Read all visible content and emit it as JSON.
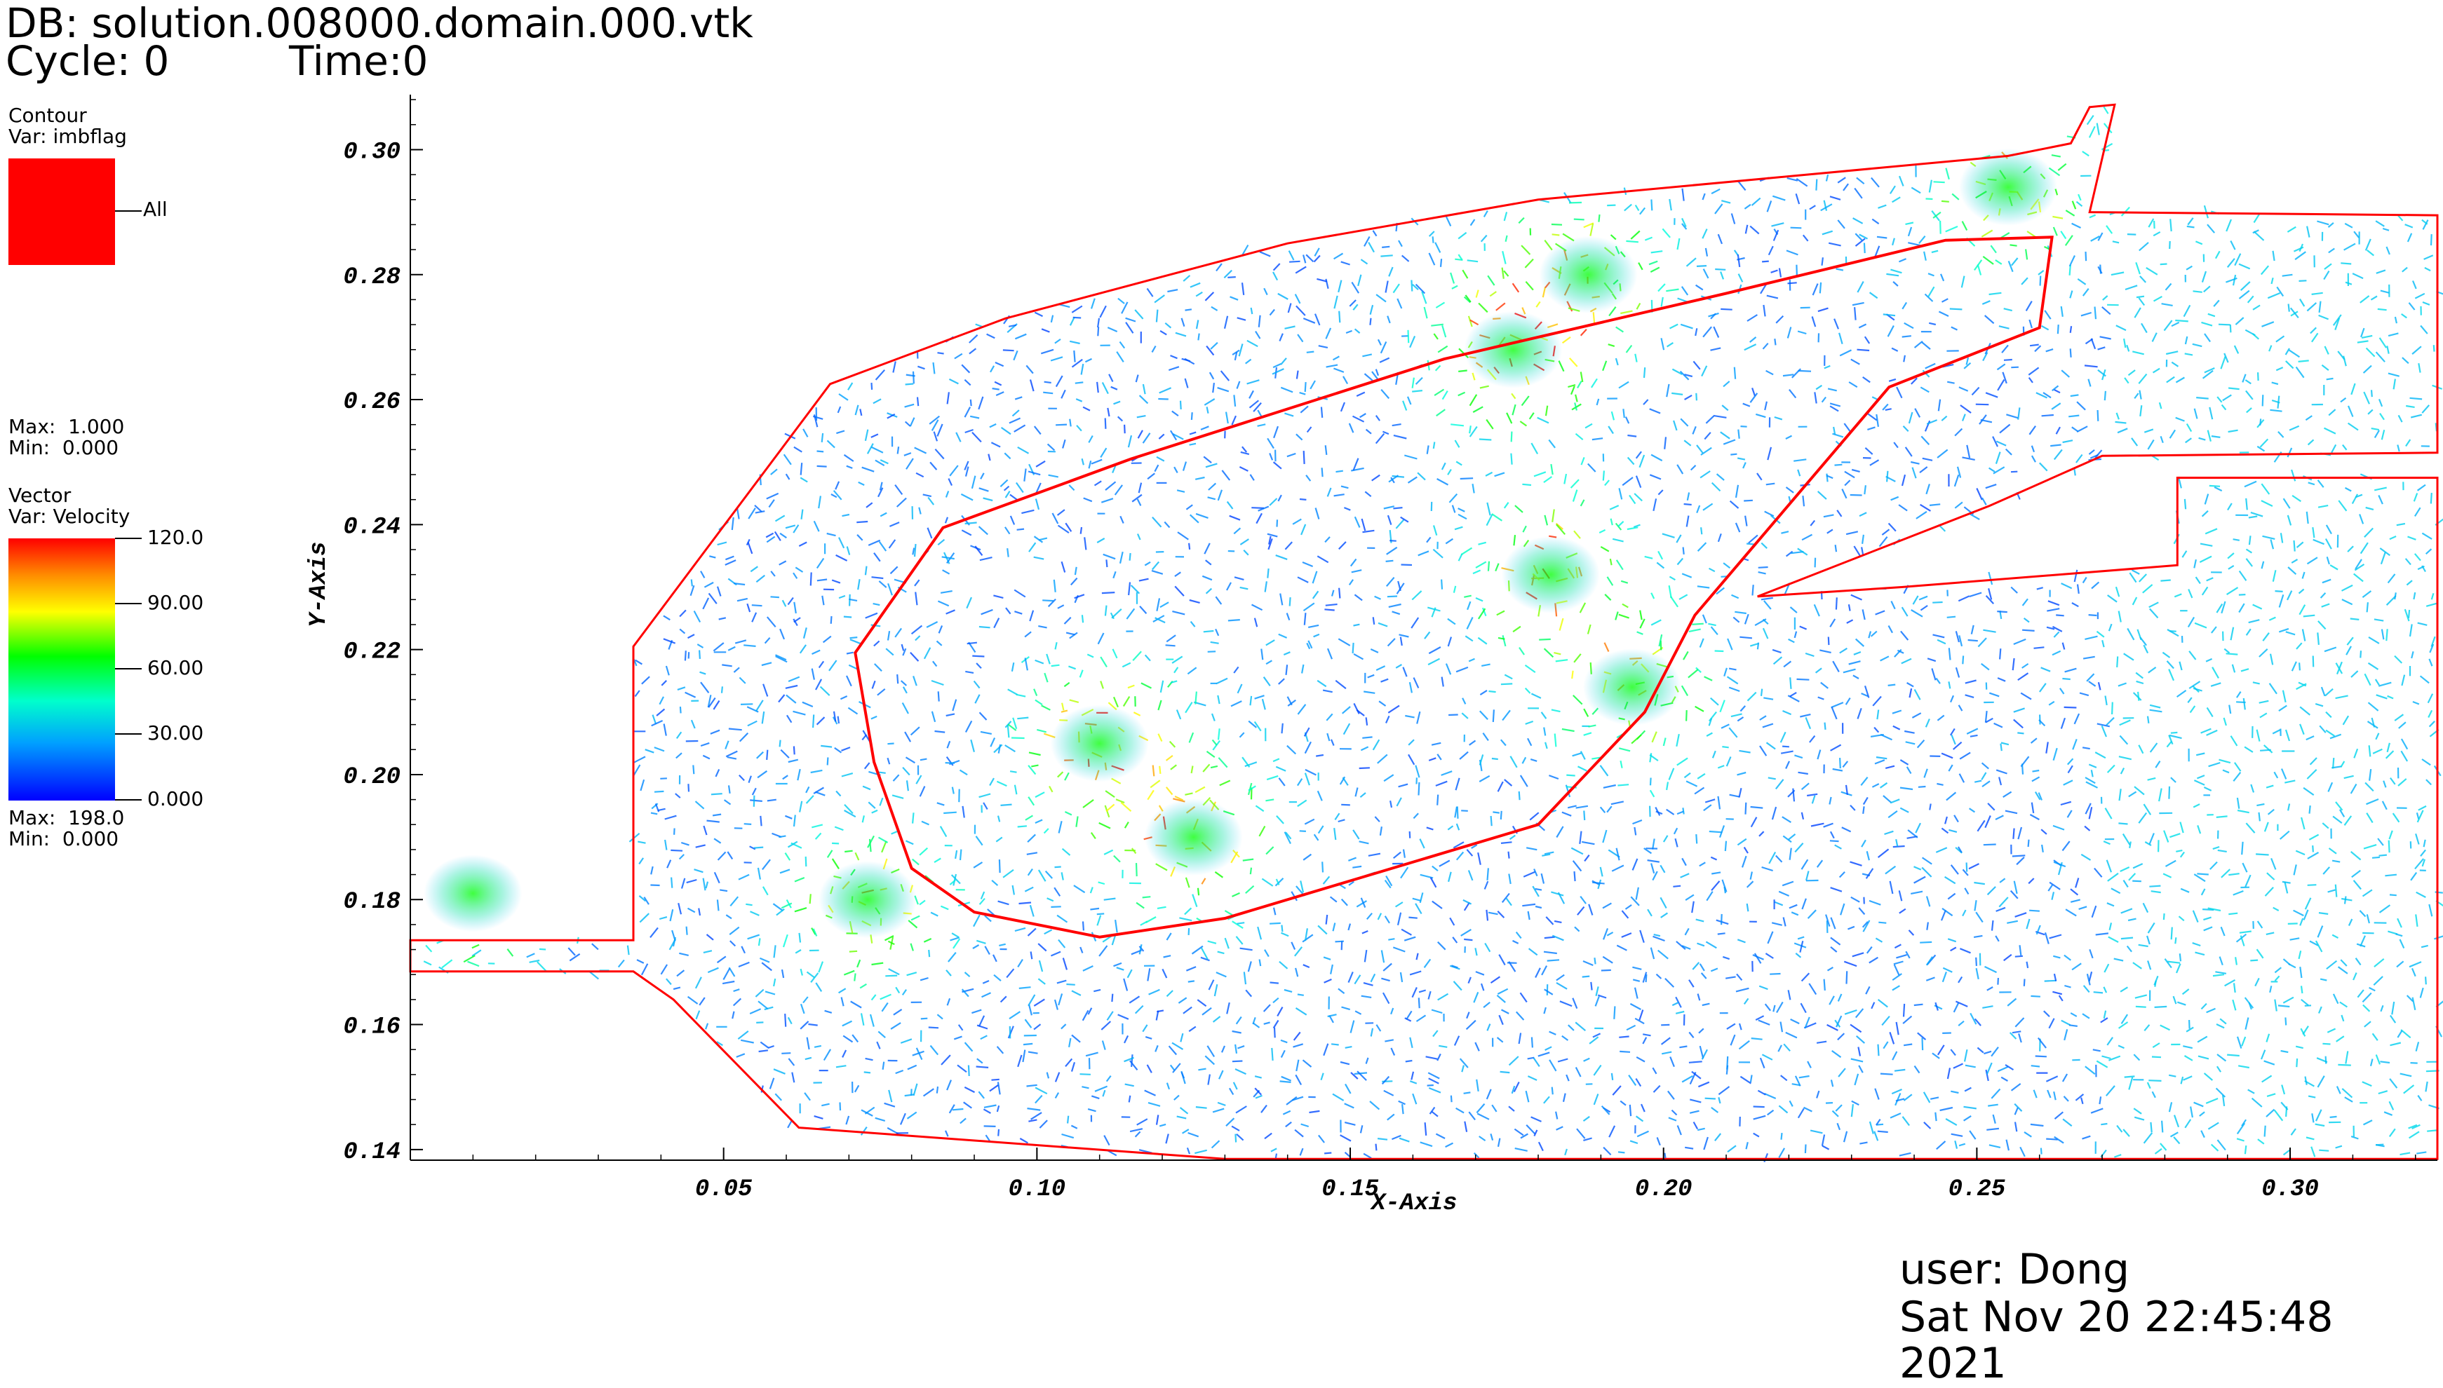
{
  "header": {
    "db_label": "DB: solution.008000.domain.000.vtk",
    "cycle_label": "Cycle: 0",
    "time_label": "Time:0"
  },
  "contour_legend": {
    "title": "Contour",
    "var": "Var: imbflag",
    "entry": "All",
    "color": "#ff0000",
    "max": "Max:  1.000",
    "min": "Min:  0.000"
  },
  "vector_legend": {
    "title": "Vector",
    "var": "Var: Velocity",
    "ticks": [
      "120.0",
      "90.00",
      "60.00",
      "30.00",
      "0.000"
    ],
    "max": "Max:  198.0",
    "min": "Min:  0.000",
    "colormap": [
      "#ff0000",
      "#ffa500",
      "#ffff00",
      "#00ff00",
      "#00ffff",
      "#0080ff",
      "#0000ff"
    ]
  },
  "footer": {
    "user": "user: Dong",
    "timestamp": "Sat Nov 20 22:45:48 2021"
  },
  "chart_data": {
    "type": "vector field with contour",
    "xlabel": "X-Axis",
    "ylabel": "Y-Axis",
    "xlim": [
      0.0,
      0.3235
    ],
    "ylim": [
      0.1383,
      0.3088
    ],
    "x_ticks": [
      "0.05",
      "0.10",
      "0.15",
      "0.20",
      "0.25",
      "0.30"
    ],
    "y_ticks": [
      "0.14",
      "0.16",
      "0.18",
      "0.20",
      "0.22",
      "0.24",
      "0.26",
      "0.28",
      "0.30"
    ],
    "grid": false,
    "series": [
      {
        "name": "imbflag",
        "kind": "contour",
        "color": "#ff0000",
        "outer_boundary": [
          [
            0.0,
            0.1735
          ],
          [
            0.0356,
            0.1735
          ],
          [
            0.0356,
            0.2205
          ],
          [
            0.067,
            0.2625
          ],
          [
            0.095,
            0.273
          ],
          [
            0.14,
            0.285
          ],
          [
            0.18,
            0.292
          ],
          [
            0.255,
            0.299
          ],
          [
            0.265,
            0.301
          ],
          [
            0.268,
            0.3068
          ],
          [
            0.272,
            0.3072
          ],
          [
            0.268,
            0.29
          ],
          [
            0.3235,
            0.2895
          ],
          [
            0.3235,
            0.2515
          ],
          [
            0.27,
            0.251
          ],
          [
            0.252,
            0.243
          ],
          [
            0.215,
            0.2285
          ],
          [
            0.238,
            0.23
          ],
          [
            0.282,
            0.2335
          ],
          [
            0.282,
            0.2475
          ],
          [
            0.3235,
            0.2475
          ],
          [
            0.3235,
            0.1385
          ],
          [
            0.13,
            0.1385
          ],
          [
            0.062,
            0.1435
          ],
          [
            0.042,
            0.164
          ],
          [
            0.0356,
            0.1685
          ],
          [
            0.0,
            0.1685
          ]
        ],
        "inner_island": [
          [
            0.071,
            0.2195
          ],
          [
            0.085,
            0.2395
          ],
          [
            0.115,
            0.2505
          ],
          [
            0.165,
            0.2665
          ],
          [
            0.21,
            0.277
          ],
          [
            0.245,
            0.2855
          ],
          [
            0.262,
            0.286
          ],
          [
            0.26,
            0.2715
          ],
          [
            0.236,
            0.262
          ],
          [
            0.205,
            0.2255
          ],
          [
            0.197,
            0.21
          ],
          [
            0.18,
            0.192
          ],
          [
            0.15,
            0.183
          ],
          [
            0.13,
            0.177
          ],
          [
            0.11,
            0.174
          ],
          [
            0.09,
            0.178
          ],
          [
            0.08,
            0.185
          ],
          [
            0.074,
            0.202
          ]
        ]
      },
      {
        "name": "Velocity",
        "kind": "vector",
        "range": [
          0.0,
          198.0
        ],
        "hotspots": [
          {
            "x": 0.073,
            "y": 0.18,
            "value": 65
          },
          {
            "x": 0.11,
            "y": 0.205,
            "value": 85
          },
          {
            "x": 0.125,
            "y": 0.19,
            "value": 75
          },
          {
            "x": 0.176,
            "y": 0.268,
            "value": 90
          },
          {
            "x": 0.182,
            "y": 0.232,
            "value": 80
          },
          {
            "x": 0.195,
            "y": 0.214,
            "value": 65
          },
          {
            "x": 0.188,
            "y": 0.28,
            "value": 60
          },
          {
            "x": 0.255,
            "y": 0.294,
            "value": 70
          },
          {
            "x": 0.01,
            "y": 0.181,
            "value": 55
          }
        ]
      }
    ]
  }
}
